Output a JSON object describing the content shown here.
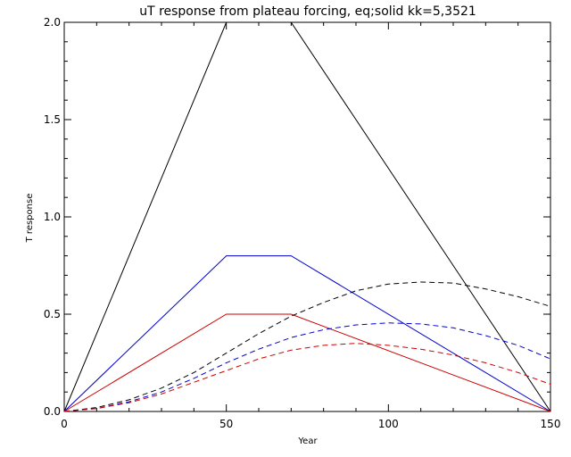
{
  "chart_data": {
    "type": "line",
    "title": "uT response from plateau forcing, eq;solid kk=5,3521",
    "xlabel": "Year",
    "ylabel": "T response",
    "xlim": [
      0,
      150
    ],
    "ylim": [
      0,
      2.0
    ],
    "x_ticks": [
      0,
      50,
      100,
      150
    ],
    "x_tick_labels": [
      "0",
      "50",
      "100",
      "150"
    ],
    "y_ticks": [
      0,
      0.5,
      1.0,
      1.5,
      2.0
    ],
    "y_tick_labels": [
      "0.0",
      "0.5",
      "1.0",
      "1.5",
      "2.0"
    ],
    "grid": false,
    "legend": "none",
    "series": [
      {
        "color": "#000000",
        "style": "solid",
        "x": [
          0,
          50,
          70,
          150
        ],
        "y": [
          0,
          2.0,
          2.0,
          0
        ]
      },
      {
        "color": "#0000cc",
        "style": "solid",
        "x": [
          0,
          50,
          70,
          150
        ],
        "y": [
          0,
          0.8,
          0.8,
          0
        ]
      },
      {
        "color": "#cc0000",
        "style": "solid",
        "x": [
          0,
          50,
          70,
          150
        ],
        "y": [
          0,
          0.5,
          0.5,
          0
        ]
      },
      {
        "color": "#000000",
        "style": "dashed",
        "x": [
          0,
          10,
          20,
          30,
          40,
          50,
          60,
          70,
          80,
          90,
          100,
          110,
          120,
          130,
          140,
          150
        ],
        "y": [
          0,
          0.02,
          0.06,
          0.12,
          0.2,
          0.3,
          0.4,
          0.49,
          0.56,
          0.62,
          0.655,
          0.665,
          0.66,
          0.63,
          0.59,
          0.54
        ]
      },
      {
        "color": "#0000cc",
        "style": "dashed",
        "x": [
          0,
          10,
          20,
          30,
          40,
          50,
          60,
          70,
          80,
          90,
          100,
          110,
          120,
          130,
          140,
          150
        ],
        "y": [
          0,
          0.015,
          0.05,
          0.1,
          0.17,
          0.25,
          0.32,
          0.38,
          0.42,
          0.445,
          0.455,
          0.45,
          0.43,
          0.39,
          0.34,
          0.27
        ]
      },
      {
        "color": "#cc0000",
        "style": "dashed",
        "x": [
          0,
          10,
          20,
          30,
          40,
          50,
          60,
          70,
          80,
          90,
          100,
          110,
          120,
          130,
          140,
          150
        ],
        "y": [
          0,
          0.015,
          0.045,
          0.09,
          0.15,
          0.21,
          0.27,
          0.315,
          0.34,
          0.35,
          0.34,
          0.32,
          0.29,
          0.25,
          0.2,
          0.14
        ]
      }
    ]
  }
}
